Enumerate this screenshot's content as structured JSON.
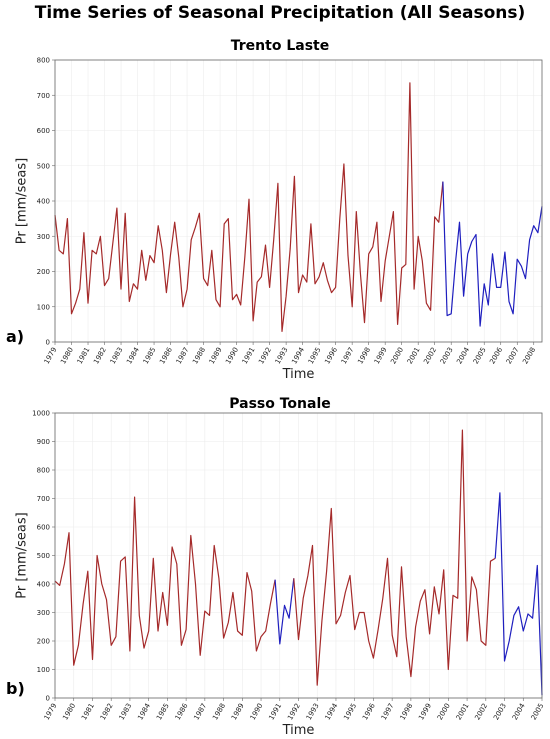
{
  "figure": {
    "title": "Time Series of Seasonal Precipitation (All Seasons)"
  },
  "colors": {
    "primary": "#a52a2a",
    "secondary": "#1f1fbf",
    "connector": "#6b5a12"
  },
  "chart_data": [
    {
      "type": "line",
      "panel_tag": "a)",
      "title": "Trento Laste",
      "xlabel": "Time",
      "ylabel": "Pr [mm/seas]",
      "xlim": [
        1979,
        2008.5
      ],
      "ylim": [
        0,
        800
      ],
      "yticks": [
        0,
        100,
        200,
        300,
        400,
        500,
        600,
        700,
        800
      ],
      "xticks": [
        1979,
        1980,
        1981,
        1982,
        1983,
        1984,
        1985,
        1986,
        1987,
        1988,
        1989,
        1990,
        1991,
        1992,
        1993,
        1994,
        1995,
        1996,
        1997,
        1998,
        1999,
        2000,
        2001,
        2002,
        2003,
        2004,
        2005,
        2006,
        2007,
        2008
      ],
      "grid": true,
      "series": [
        {
          "color": "#a52a2a",
          "x": [
            1979.0,
            1979.25,
            1979.5,
            1979.75,
            1980.0,
            1980.25,
            1980.5,
            1980.75,
            1981.0,
            1981.25,
            1981.5,
            1981.75,
            1982.0,
            1982.25,
            1982.5,
            1982.75,
            1983.0,
            1983.25,
            1983.5,
            1983.75,
            1984.0,
            1984.25,
            1984.5,
            1984.75,
            1985.0,
            1985.25,
            1985.5,
            1985.75,
            1986.0,
            1986.25,
            1986.5,
            1986.75,
            1987.0,
            1987.25,
            1987.5,
            1987.75,
            1988.0,
            1988.25,
            1988.5,
            1988.75,
            1989.0,
            1989.25,
            1989.5,
            1989.75,
            1990.0,
            1990.25,
            1990.5,
            1990.75,
            1991.0,
            1991.25,
            1991.5,
            1991.75,
            1992.0,
            1992.25,
            1992.5,
            1992.75,
            1993.0,
            1993.25,
            1993.5,
            1993.75,
            1994.0,
            1994.25,
            1994.5,
            1994.75,
            1995.0,
            1995.25,
            1995.5,
            1995.75,
            1996.0,
            1996.25,
            1996.5,
            1996.75,
            1997.0,
            1997.25,
            1997.5,
            1997.75,
            1998.0,
            1998.25,
            1998.5,
            1998.75,
            1999.0,
            1999.25,
            1999.5,
            1999.75,
            2000.0,
            2000.25,
            2000.5,
            2000.75,
            2001.0,
            2001.25,
            2001.5,
            2001.75,
            2002.0,
            2002.25,
            2002.5
          ],
          "y": [
            360,
            260,
            250,
            350,
            80,
            110,
            150,
            310,
            110,
            260,
            250,
            300,
            160,
            180,
            280,
            380,
            150,
            365,
            115,
            165,
            150,
            260,
            175,
            245,
            225,
            330,
            260,
            140,
            250,
            340,
            240,
            100,
            150,
            290,
            325,
            365,
            180,
            160,
            260,
            120,
            100,
            335,
            350,
            120,
            135,
            105,
            240,
            405,
            60,
            170,
            185,
            275,
            155,
            290,
            450,
            30,
            130,
            265,
            470,
            140,
            190,
            170,
            335,
            165,
            185,
            225,
            175,
            140,
            155,
            350,
            505,
            245,
            100,
            370,
            195,
            55,
            250,
            270,
            340,
            115,
            230,
            300,
            370,
            50,
            210,
            220,
            735,
            150,
            300,
            230,
            110,
            90,
            355,
            340,
            455
          ]
        },
        {
          "color": "#1f1fbf",
          "x": [
            2002.5,
            2002.75,
            2003.0,
            2003.25,
            2003.5,
            2003.75,
            2004.0,
            2004.25,
            2004.5,
            2004.75,
            2005.0,
            2005.25,
            2005.5,
            2005.75,
            2006.0,
            2006.25,
            2006.5,
            2006.75,
            2007.0,
            2007.25,
            2007.5,
            2007.75,
            2008.0,
            2008.25,
            2008.5
          ],
          "y": [
            455,
            75,
            80,
            220,
            340,
            130,
            250,
            285,
            305,
            45,
            165,
            105,
            250,
            155,
            155,
            255,
            115,
            80,
            235,
            215,
            180,
            290,
            330,
            310,
            385
          ]
        }
      ]
    },
    {
      "type": "line",
      "panel_tag": "b)",
      "title": "Passo Tonale",
      "xlabel": "Time",
      "ylabel": "Pr [mm/seas]",
      "xlim": [
        1979,
        2005
      ],
      "ylim": [
        0,
        1000
      ],
      "yticks": [
        0,
        100,
        200,
        300,
        400,
        500,
        600,
        700,
        800,
        900,
        1000
      ],
      "xticks": [
        1979,
        1980,
        1981,
        1982,
        1983,
        1984,
        1985,
        1986,
        1987,
        1988,
        1989,
        1990,
        1991,
        1992,
        1993,
        1994,
        1995,
        1996,
        1997,
        1998,
        1999,
        2000,
        2001,
        2002,
        2003,
        2004,
        2005
      ],
      "grid": true,
      "series": [
        {
          "color": "#a52a2a",
          "x": [
            1979.0,
            1979.25,
            1979.5,
            1979.75,
            1980.0,
            1980.25,
            1980.5,
            1980.75,
            1981.0,
            1981.25,
            1981.5,
            1981.75,
            1982.0,
            1982.25,
            1982.5,
            1982.75,
            1983.0,
            1983.25,
            1983.5,
            1983.75,
            1984.0,
            1984.25,
            1984.5,
            1984.75,
            1985.0,
            1985.25,
            1985.5,
            1985.75,
            1986.0,
            1986.25,
            1986.5,
            1986.75,
            1987.0,
            1987.25,
            1987.5,
            1987.75,
            1988.0,
            1988.25,
            1988.5,
            1988.75,
            1989.0,
            1989.25,
            1989.5,
            1989.75,
            1990.0,
            1990.25,
            1990.5,
            1990.75
          ],
          "y": [
            410,
            395,
            470,
            580,
            115,
            185,
            330,
            445,
            135,
            500,
            400,
            345,
            185,
            215,
            480,
            495,
            165,
            705,
            290,
            175,
            235,
            490,
            235,
            370,
            255,
            530,
            470,
            185,
            240,
            570,
            400,
            150,
            305,
            290,
            535,
            420,
            210,
            265,
            370,
            235,
            220,
            440,
            375,
            165,
            215,
            235,
            330,
            415
          ]
        },
        {
          "color": "#1f1fbf",
          "x": [
            1990.75,
            1991.0,
            1991.25,
            1991.5,
            1991.75
          ],
          "y": [
            415,
            190,
            325,
            280,
            420
          ]
        },
        {
          "color": "#a52a2a",
          "x": [
            1991.75,
            1992.0,
            1992.25,
            1992.5,
            1992.75,
            1993.0,
            1993.25,
            1993.5,
            1993.75,
            1994.0,
            1994.25,
            1994.5,
            1994.75,
            1995.0,
            1995.25,
            1995.5,
            1995.75,
            1996.0,
            1996.25,
            1996.5,
            1996.75,
            1997.0,
            1997.25,
            1997.5,
            1997.75,
            1998.0,
            1998.25,
            1998.5,
            1998.75,
            1999.0,
            1999.25,
            1999.5,
            1999.75,
            2000.0,
            2000.25,
            2000.5,
            2000.75,
            2001.0,
            2001.25,
            2001.5,
            2001.75,
            2002.0,
            2002.25,
            2002.5
          ],
          "y": [
            420,
            205,
            350,
            430,
            535,
            45,
            270,
            445,
            665,
            260,
            290,
            370,
            430,
            240,
            300,
            300,
            200,
            140,
            240,
            350,
            490,
            220,
            145,
            460,
            215,
            75,
            250,
            340,
            380,
            225,
            390,
            295,
            450,
            100,
            360,
            350,
            940,
            200,
            425,
            380,
            200,
            185,
            480,
            490
          ]
        },
        {
          "color": "#1f1fbf",
          "x": [
            2002.5,
            2002.75,
            2003.0,
            2003.25,
            2003.5,
            2003.75,
            2004.0,
            2004.25,
            2004.5,
            2004.75,
            2005.0
          ],
          "y": [
            490,
            720,
            130,
            200,
            290,
            320,
            235,
            295,
            280,
            465,
            10
          ]
        }
      ]
    }
  ]
}
